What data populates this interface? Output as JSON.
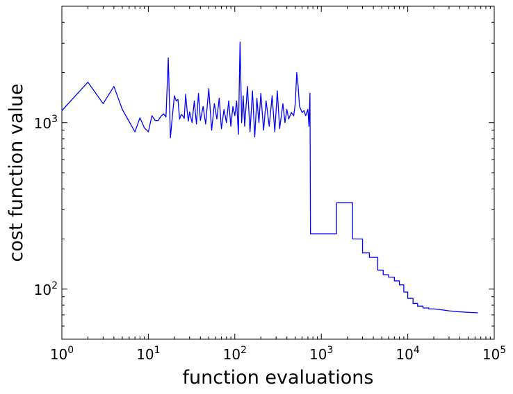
{
  "chart_data": {
    "type": "line",
    "title": "",
    "xlabel": "function evaluations",
    "ylabel": "cost function value",
    "xscale": "log",
    "yscale": "log",
    "xlim": [
      1,
      100000
    ],
    "ylim": [
      50,
      5000
    ],
    "grid": false,
    "x_ticks": [
      {
        "base": "10",
        "exp": "0"
      },
      {
        "base": "10",
        "exp": "1"
      },
      {
        "base": "10",
        "exp": "2"
      },
      {
        "base": "10",
        "exp": "3"
      },
      {
        "base": "10",
        "exp": "4"
      },
      {
        "base": "10",
        "exp": "5"
      }
    ],
    "y_ticks": [
      {
        "base": "10",
        "exp": "2"
      },
      {
        "base": "10",
        "exp": "3"
      }
    ],
    "series": [
      {
        "color": "#0000ff",
        "x": [
          1,
          2,
          3,
          4,
          5,
          7,
          8,
          9,
          10,
          11,
          12,
          13,
          14,
          15,
          16,
          17,
          18,
          19,
          20,
          21,
          22,
          23,
          24,
          25,
          26,
          27,
          28,
          29,
          30,
          32,
          34,
          36,
          38,
          40,
          43,
          46,
          50,
          54,
          58,
          62,
          66,
          70,
          75,
          80,
          85,
          90,
          95,
          100,
          105,
          110,
          115,
          120,
          125,
          130,
          140,
          150,
          160,
          170,
          180,
          190,
          200,
          215,
          230,
          250,
          270,
          290,
          310,
          330,
          360,
          380,
          400,
          420,
          450,
          480,
          500,
          520,
          540,
          560,
          580,
          600,
          630,
          660,
          700,
          720,
          740,
          750,
          1500,
          1500,
          2300,
          2300,
          3000,
          3000,
          3600,
          3600,
          4500,
          4500,
          5200,
          5200,
          6000,
          6000,
          7000,
          7000,
          8000,
          8000,
          9000,
          9000,
          10000,
          10000,
          11500,
          11500,
          13000,
          13000,
          15000,
          15000,
          17500,
          17500,
          20000,
          25000,
          30000,
          40000,
          50000,
          65000
        ],
        "y": [
          1180,
          1750,
          1300,
          1650,
          1200,
          880,
          1070,
          930,
          880,
          1100,
          1030,
          1030,
          1090,
          1130,
          1080,
          2450,
          810,
          1100,
          1450,
          1350,
          1380,
          1050,
          1120,
          1100,
          1060,
          1480,
          1200,
          1020,
          1160,
          1000,
          1350,
          980,
          1500,
          1030,
          1250,
          980,
          1600,
          900,
          1300,
          1050,
          1400,
          920,
          1200,
          1000,
          1350,
          950,
          1250,
          1100,
          1350,
          850,
          3050,
          1000,
          1450,
          950,
          1650,
          880,
          1550,
          820,
          1400,
          1000,
          1500,
          900,
          1350,
          950,
          1450,
          880,
          1550,
          920,
          1300,
          1000,
          1200,
          1050,
          1150,
          1100,
          1300,
          2000,
          1650,
          1250,
          1200,
          1150,
          1180,
          1100,
          1200,
          950,
          1500,
          215,
          215,
          330,
          330,
          200,
          200,
          165,
          165,
          155,
          155,
          130,
          130,
          122,
          122,
          118,
          118,
          112,
          112,
          106,
          106,
          96,
          96,
          88,
          88,
          82,
          82,
          79,
          79,
          77,
          77,
          76,
          76,
          75,
          74,
          73,
          72.5,
          72
        ]
      }
    ]
  }
}
